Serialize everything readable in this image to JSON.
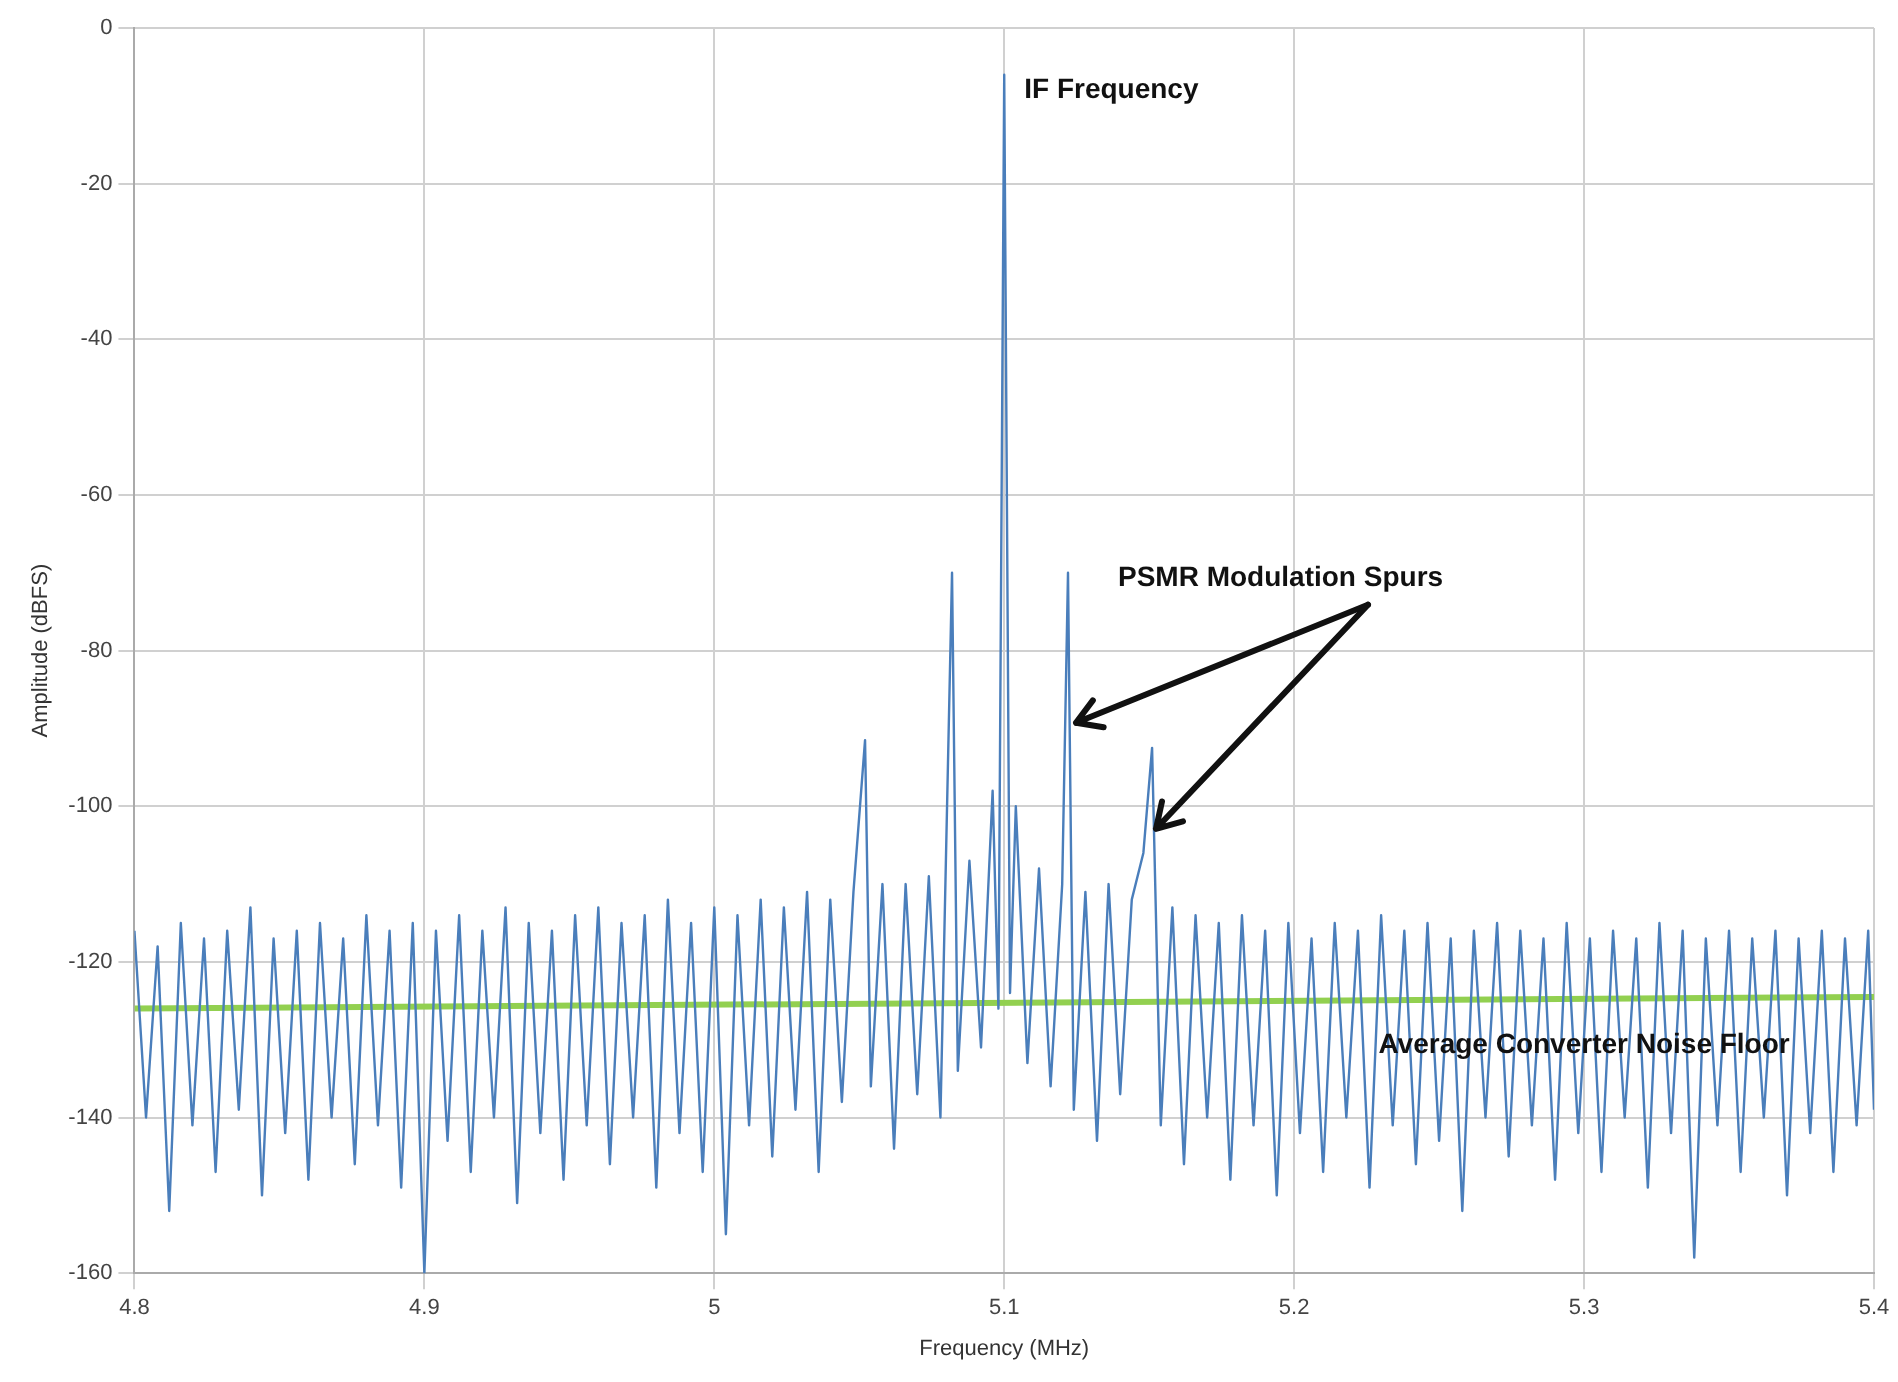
{
  "chart_data": {
    "type": "line",
    "xlabel": "Frequency (MHz)",
    "ylabel": "Amplitude (dBFS)",
    "xlim": [
      4.8,
      5.4
    ],
    "xticks": [
      4.8,
      4.9,
      5,
      5.1,
      5.2,
      5.3,
      5.4
    ],
    "ylim": [
      -160,
      0
    ],
    "yticks": [
      -160,
      -140,
      -120,
      -100,
      -80,
      -60,
      -40,
      -20,
      0
    ],
    "grid": true,
    "legend": false,
    "marker": "none",
    "series": [
      {
        "color": "#4a7ebb",
        "x": [
          4.8,
          4.804,
          4.808,
          4.812,
          4.816,
          4.82,
          4.824,
          4.828,
          4.832,
          4.836,
          4.84,
          4.844,
          4.848,
          4.852,
          4.856,
          4.86,
          4.864,
          4.868,
          4.872,
          4.876,
          4.88,
          4.884,
          4.888,
          4.892,
          4.896,
          4.9,
          4.904,
          4.908,
          4.912,
          4.916,
          4.92,
          4.924,
          4.928,
          4.932,
          4.936,
          4.94,
          4.944,
          4.948,
          4.952,
          4.956,
          4.96,
          4.964,
          4.968,
          4.972,
          4.976,
          4.98,
          4.984,
          4.988,
          4.992,
          4.996,
          5.0,
          5.004,
          5.008,
          5.012,
          5.016,
          5.02,
          5.024,
          5.028,
          5.032,
          5.036,
          5.04,
          5.044,
          5.048,
          5.052,
          5.054,
          5.058,
          5.062,
          5.066,
          5.07,
          5.074,
          5.078,
          5.082,
          5.084,
          5.088,
          5.092,
          5.096,
          5.098,
          5.1,
          5.102,
          5.104,
          5.108,
          5.112,
          5.116,
          5.12,
          5.122,
          5.124,
          5.128,
          5.132,
          5.136,
          5.14,
          5.144,
          5.148,
          5.151,
          5.154,
          5.158,
          5.162,
          5.166,
          5.17,
          5.174,
          5.178,
          5.182,
          5.186,
          5.19,
          5.194,
          5.198,
          5.202,
          5.206,
          5.21,
          5.214,
          5.218,
          5.222,
          5.226,
          5.23,
          5.234,
          5.238,
          5.242,
          5.246,
          5.25,
          5.254,
          5.258,
          5.262,
          5.266,
          5.27,
          5.274,
          5.278,
          5.282,
          5.286,
          5.29,
          5.294,
          5.298,
          5.302,
          5.306,
          5.31,
          5.314,
          5.318,
          5.322,
          5.326,
          5.33,
          5.334,
          5.338,
          5.342,
          5.346,
          5.35,
          5.354,
          5.358,
          5.362,
          5.366,
          5.37,
          5.374,
          5.378,
          5.382,
          5.386,
          5.39,
          5.394,
          5.398,
          5.4
        ],
        "values": [
          -116,
          -140,
          -118,
          -152,
          -115,
          -141,
          -117,
          -147,
          -116,
          -139,
          -113,
          -150,
          -117,
          -142,
          -116,
          -148,
          -115,
          -140,
          -117,
          -146,
          -114,
          -141,
          -116,
          -149,
          -115,
          -160,
          -116,
          -143,
          -114,
          -147,
          -116,
          -140,
          -113,
          -151,
          -115,
          -142,
          -116,
          -148,
          -114,
          -141,
          -113,
          -146,
          -115,
          -140,
          -114,
          -149,
          -112,
          -142,
          -115,
          -147,
          -113,
          -155,
          -114,
          -141,
          -112,
          -145,
          -113,
          -139,
          -111,
          -147,
          -112,
          -138,
          -111,
          -91.5,
          -136,
          -110,
          -144,
          -110,
          -137,
          -109,
          -140,
          -70,
          -134,
          -107,
          -131,
          -98,
          -126,
          -6,
          -124,
          -100,
          -133,
          -108,
          -136,
          -110,
          -70,
          -139,
          -111,
          -143,
          -110,
          -137,
          -112,
          -106,
          -92.5,
          -141,
          -113,
          -146,
          -114,
          -140,
          -115,
          -148,
          -114,
          -141,
          -116,
          -150,
          -115,
          -142,
          -117,
          -147,
          -115,
          -140,
          -116,
          -149,
          -114,
          -141,
          -116,
          -146,
          -115,
          -143,
          -117,
          -152,
          -116,
          -140,
          -115,
          -145,
          -116,
          -141,
          -117,
          -148,
          -115,
          -142,
          -117,
          -147,
          -116,
          -140,
          -117,
          -149,
          -115,
          -142,
          -116,
          -158,
          -117,
          -141,
          -116,
          -147,
          -117,
          -140,
          -116,
          -150,
          -117,
          -142,
          -116,
          -147,
          -117,
          -141,
          -116,
          -139
        ]
      },
      {
        "color": "#92d050",
        "x": [
          4.8,
          5.4
        ],
        "values": [
          -126,
          -124.5
        ]
      }
    ],
    "annotations": [
      {
        "text": "IF Frequency",
        "x": 5.1,
        "y": -6
      },
      {
        "text": "PSMR Modulation Spurs",
        "x": 5.122,
        "y": -70
      },
      {
        "text": "Average Converter Noise Floor",
        "x": 5.3,
        "y": -124.8
      }
    ]
  }
}
